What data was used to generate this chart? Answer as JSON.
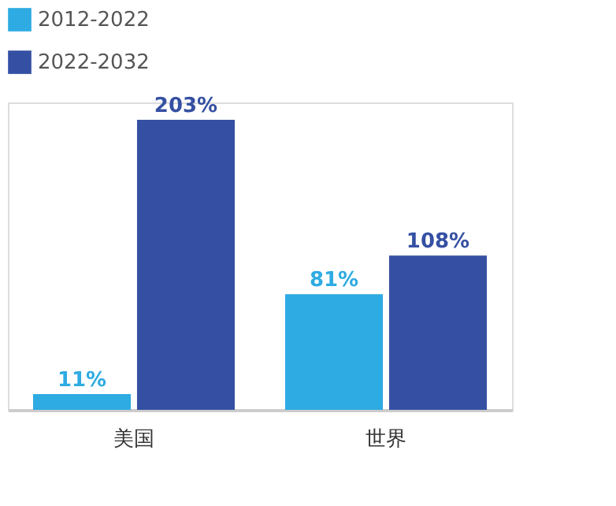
{
  "chart_data": {
    "type": "bar",
    "categories": [
      "美国",
      "世界"
    ],
    "series": [
      {
        "name": "2012-2022",
        "color": "#2eabe2",
        "values": [
          11,
          81
        ],
        "value_labels": [
          "11%",
          "81%"
        ]
      },
      {
        "name": "2022-2032",
        "color": "#3550a3",
        "values": [
          203,
          108
        ],
        "value_labels": [
          "203%",
          "108%"
        ]
      }
    ],
    "legend": "top",
    "grid": false
  }
}
